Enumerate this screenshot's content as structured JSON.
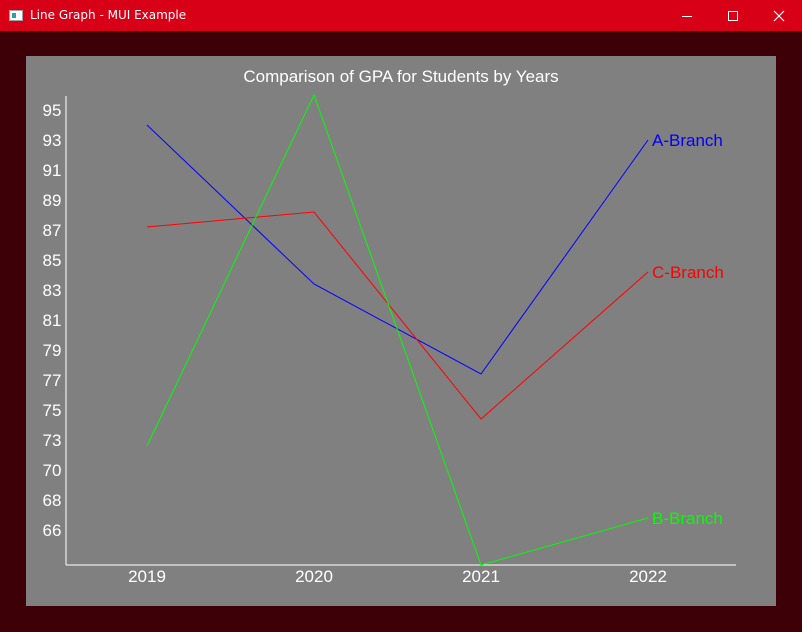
{
  "window": {
    "title": "Line Graph - MUI Example",
    "controls": [
      "minimize",
      "maximize",
      "close"
    ]
  },
  "colors": {
    "titlebar": "#d70017",
    "frame": "#3d0007",
    "plot_background": "#808080",
    "axis": "#ffffff",
    "text": "#ffffff"
  },
  "chart_data": {
    "type": "line",
    "title": "Comparison of GPA for Students by Years",
    "xlabel": "",
    "ylabel": "",
    "categories": [
      "2019",
      "2020",
      "2021",
      "2022"
    ],
    "y_ticks": [
      "95",
      "93",
      "91",
      "89",
      "87",
      "85",
      "83",
      "81",
      "79",
      "77",
      "75",
      "73",
      "70",
      "68",
      "66"
    ],
    "grid": false,
    "legend": "labels at line ends (right)",
    "series": [
      {
        "name": "A-Branch",
        "color": "#0000ff",
        "values": [
          94,
          83.4,
          77.4,
          93
        ]
      },
      {
        "name": "C-Branch",
        "color": "#ff0000",
        "values": [
          87.2,
          88.2,
          74.4,
          84.2
        ]
      },
      {
        "name": "B-Branch",
        "color": "#00ff00",
        "values": [
          72.4,
          96,
          64,
          66.8
        ]
      }
    ]
  }
}
